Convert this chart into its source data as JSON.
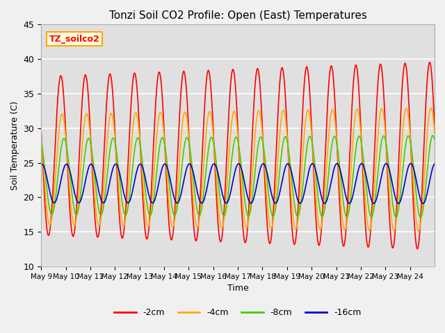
{
  "title": "Tonzi Soil CO2 Profile: Open (East) Temperatures",
  "ylabel": "Soil Temperature (C)",
  "xlabel": "Time",
  "annotation": "TZ_soilco2",
  "ylim": [
    10,
    45
  ],
  "colors": {
    "-2cm": "#ff0000",
    "-4cm": "#ffaa00",
    "-8cm": "#44cc00",
    "-16cm": "#0000cc"
  },
  "legend_labels": [
    "-2cm",
    "-4cm",
    "-8cm",
    "-16cm"
  ],
  "xtick_labels": [
    "May 9",
    "May 10",
    "May 11",
    "May 12",
    "May 13",
    "May 14",
    "May 15",
    "May 16",
    "May 17",
    "May 18",
    "May 19",
    "May 20",
    "May 21",
    "May 22",
    "May 23",
    "May 24"
  ],
  "ytick_vals": [
    10,
    15,
    20,
    25,
    30,
    35,
    40,
    45
  ],
  "background_color": "#e0e0e0",
  "fig_bg_color": "#f0f0f0"
}
